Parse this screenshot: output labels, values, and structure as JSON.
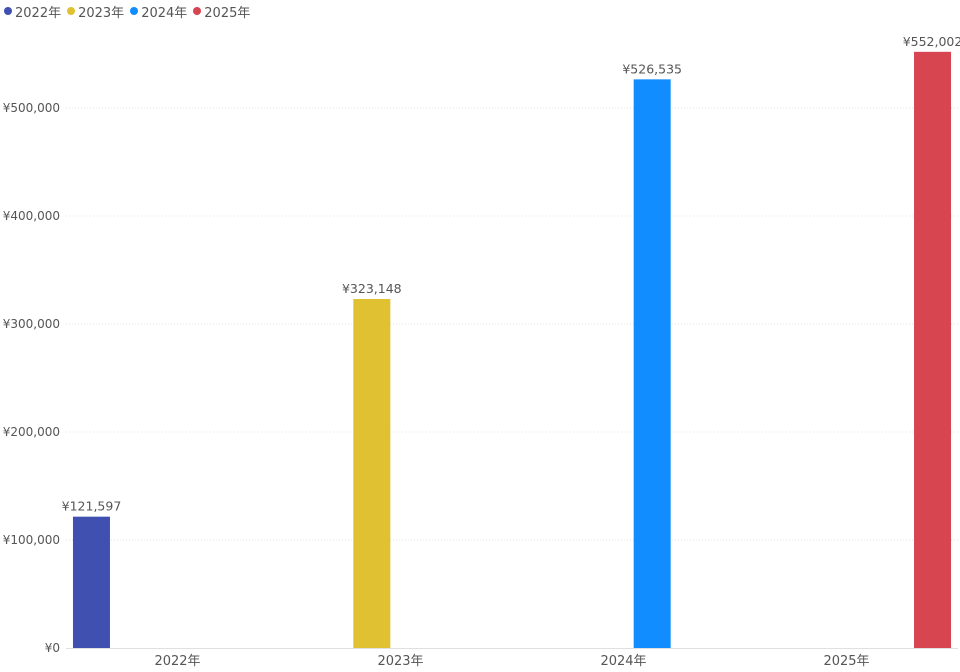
{
  "chart_data": {
    "type": "bar",
    "categories": [
      "2022年",
      "2023年",
      "2024年",
      "2025年"
    ],
    "series": [
      {
        "name": "2022年",
        "color": "#4050b0",
        "values": [
          121597,
          null,
          null,
          null
        ]
      },
      {
        "name": "2023年",
        "color": "#dfc132",
        "values": [
          null,
          323148,
          null,
          null
        ]
      },
      {
        "name": "2024年",
        "color": "#118dff",
        "values": [
          null,
          null,
          526535,
          null
        ]
      },
      {
        "name": "2025年",
        "color": "#d64550",
        "values": [
          null,
          null,
          null,
          552002
        ]
      }
    ],
    "data_labels": [
      "¥121,597",
      "¥323,148",
      "¥526,535",
      "¥552,002"
    ],
    "y_ticks": [
      0,
      100000,
      200000,
      300000,
      400000,
      500000
    ],
    "y_tick_labels": [
      "¥0",
      "¥100,000",
      "¥200,000",
      "¥300,000",
      "¥400,000",
      "¥500,000"
    ],
    "ylim": [
      0,
      560000
    ],
    "legend_position": "top-left",
    "grid": true,
    "xlabel": "",
    "ylabel": ""
  }
}
